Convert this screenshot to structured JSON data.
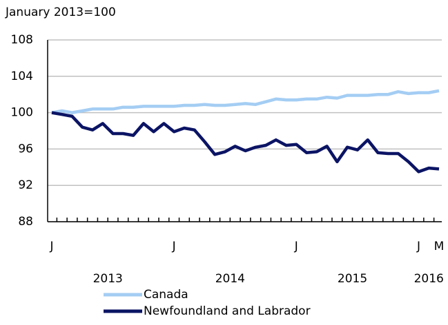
{
  "chart_data": {
    "type": "line",
    "y_axis_title": "January 2013=100",
    "categories": [
      "J",
      null,
      null,
      null,
      null,
      null,
      null,
      null,
      null,
      null,
      null,
      null,
      "J",
      null,
      null,
      null,
      null,
      null,
      null,
      null,
      null,
      null,
      null,
      null,
      "J",
      null,
      null,
      null,
      null,
      null,
      null,
      null,
      null,
      null,
      null,
      null,
      "J",
      null,
      "M"
    ],
    "years": [
      "2013",
      "2014",
      "2015",
      "2016"
    ],
    "series": [
      {
        "name": "Canada",
        "color": "#a4cdf3",
        "values": [
          100.0,
          100.2,
          100.0,
          100.2,
          100.4,
          100.4,
          100.4,
          100.6,
          100.6,
          100.7,
          100.7,
          100.7,
          100.7,
          100.8,
          100.8,
          100.9,
          100.8,
          100.8,
          100.9,
          101.0,
          100.9,
          101.2,
          101.5,
          101.4,
          101.4,
          101.5,
          101.5,
          101.7,
          101.6,
          101.9,
          101.9,
          101.9,
          102.0,
          102.0,
          102.3,
          102.1,
          102.2,
          102.2,
          102.4
        ]
      },
      {
        "name": "Newfoundland and Labrador",
        "color": "#0b1464",
        "values": [
          100.0,
          99.8,
          99.6,
          98.4,
          98.1,
          98.8,
          97.7,
          97.7,
          97.5,
          98.8,
          97.9,
          98.8,
          97.9,
          98.3,
          98.1,
          96.8,
          95.4,
          95.7,
          96.3,
          95.8,
          96.2,
          96.4,
          97.0,
          96.4,
          96.5,
          95.6,
          95.7,
          96.3,
          94.6,
          96.2,
          95.9,
          97.0,
          95.6,
          95.5,
          95.5,
          94.6,
          93.5,
          93.9,
          93.8
        ]
      }
    ],
    "ylim": [
      88,
      108
    ],
    "yticks": [
      88,
      92,
      96,
      100,
      104,
      108
    ],
    "grid": true
  }
}
